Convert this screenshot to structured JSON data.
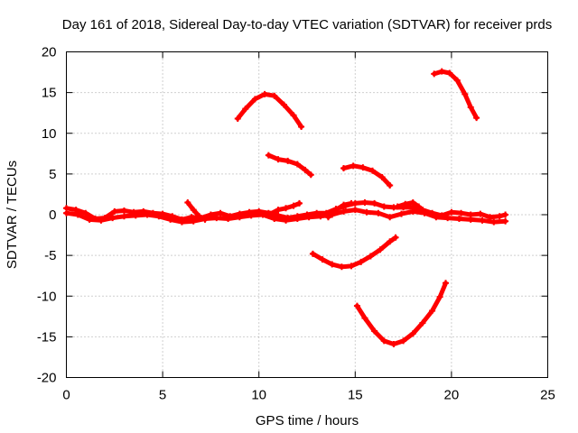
{
  "chart_data": {
    "type": "scatter",
    "title": "Day 161 of 2018, Sidereal Day-to-day VTEC variation (SDTVAR) for receiver prds",
    "xlabel": "GPS time / hours",
    "ylabel": "SDTVAR / TECUs",
    "xlim": [
      0,
      25
    ],
    "ylim": [
      -20,
      20
    ],
    "xticks": [
      0,
      5,
      10,
      15,
      20,
      25
    ],
    "yticks": [
      -20,
      -15,
      -10,
      -5,
      0,
      5,
      10,
      15,
      20
    ],
    "grid": true,
    "series_color": "#ff0000",
    "series": [
      {
        "name": "baseline",
        "points": [
          [
            0.0,
            0.8
          ],
          [
            0.5,
            0.6
          ],
          [
            1.0,
            0.2
          ],
          [
            1.5,
            -0.5
          ],
          [
            2.0,
            -0.4
          ],
          [
            2.5,
            0.4
          ],
          [
            3.0,
            0.5
          ],
          [
            3.5,
            0.3
          ],
          [
            4.0,
            0.4
          ],
          [
            4.5,
            0.2
          ],
          [
            5.0,
            0.1
          ],
          [
            5.5,
            -0.2
          ],
          [
            6.0,
            -0.6
          ],
          [
            6.5,
            -0.3
          ],
          [
            7.0,
            -0.4
          ],
          [
            7.5,
            0.0
          ],
          [
            8.0,
            0.2
          ],
          [
            8.5,
            -0.2
          ],
          [
            9.0,
            0.1
          ],
          [
            9.5,
            0.3
          ],
          [
            10.0,
            0.4
          ],
          [
            10.5,
            0.2
          ],
          [
            11.0,
            -0.1
          ],
          [
            11.5,
            -0.4
          ],
          [
            12.0,
            -0.2
          ],
          [
            12.5,
            0.0
          ],
          [
            13.0,
            0.2
          ],
          [
            13.5,
            0.2
          ],
          [
            14.0,
            0.7
          ],
          [
            14.5,
            1.1
          ],
          [
            15.0,
            1.4
          ],
          [
            15.5,
            1.5
          ],
          [
            16.0,
            1.4
          ],
          [
            16.5,
            1.0
          ],
          [
            17.0,
            0.9
          ],
          [
            17.5,
            0.9
          ],
          [
            18.0,
            0.9
          ],
          [
            18.5,
            0.6
          ],
          [
            19.0,
            0.2
          ],
          [
            19.5,
            -0.1
          ],
          [
            20.0,
            0.3
          ],
          [
            20.5,
            0.2
          ],
          [
            21.0,
            0.0
          ],
          [
            21.5,
            0.1
          ],
          [
            22.0,
            -0.3
          ],
          [
            22.5,
            -0.2
          ],
          [
            22.8,
            0.0
          ]
        ]
      },
      {
        "name": "baseline-lower",
        "points": [
          [
            0.0,
            0.2
          ],
          [
            0.6,
            0.0
          ],
          [
            1.2,
            -0.6
          ],
          [
            1.8,
            -0.7
          ],
          [
            2.4,
            -0.4
          ],
          [
            3.0,
            -0.2
          ],
          [
            3.6,
            -0.1
          ],
          [
            4.2,
            0.0
          ],
          [
            4.8,
            -0.2
          ],
          [
            5.4,
            -0.6
          ],
          [
            6.0,
            -0.9
          ],
          [
            6.6,
            -0.8
          ],
          [
            7.2,
            -0.5
          ],
          [
            7.8,
            -0.4
          ],
          [
            8.4,
            -0.5
          ],
          [
            9.0,
            -0.3
          ],
          [
            9.6,
            -0.1
          ],
          [
            10.2,
            0.0
          ],
          [
            10.8,
            -0.5
          ],
          [
            11.4,
            -0.7
          ],
          [
            12.0,
            -0.5
          ],
          [
            12.6,
            -0.3
          ],
          [
            13.2,
            -0.2
          ],
          [
            13.8,
            0.0
          ],
          [
            14.4,
            0.4
          ],
          [
            15.0,
            0.6
          ],
          [
            15.6,
            0.3
          ],
          [
            16.2,
            0.2
          ],
          [
            16.8,
            -0.3
          ],
          [
            17.4,
            0.1
          ],
          [
            18.0,
            0.4
          ],
          [
            18.6,
            0.2
          ],
          [
            19.2,
            -0.3
          ],
          [
            19.8,
            -0.4
          ],
          [
            20.4,
            -0.5
          ],
          [
            21.0,
            -0.6
          ],
          [
            21.6,
            -0.7
          ],
          [
            22.2,
            -0.9
          ],
          [
            22.8,
            -0.8
          ]
        ]
      },
      {
        "name": "spur-6h",
        "points": [
          [
            6.3,
            1.5
          ],
          [
            6.6,
            0.6
          ],
          [
            6.9,
            -0.2
          ],
          [
            7.2,
            -0.6
          ]
        ]
      },
      {
        "name": "spur-11h",
        "points": [
          [
            10.6,
            0.1
          ],
          [
            11.0,
            0.6
          ],
          [
            11.4,
            0.8
          ],
          [
            11.8,
            1.1
          ],
          [
            12.1,
            1.4
          ]
        ]
      },
      {
        "name": "spur-14h",
        "points": [
          [
            13.6,
            -0.3
          ],
          [
            14.0,
            0.6
          ],
          [
            14.4,
            1.2
          ],
          [
            14.8,
            1.4
          ]
        ]
      },
      {
        "name": "spur-18h",
        "points": [
          [
            17.2,
            1.0
          ],
          [
            17.6,
            1.3
          ],
          [
            18.0,
            1.5
          ],
          [
            18.3,
            1.0
          ]
        ]
      },
      {
        "name": "arc-a",
        "points": [
          [
            8.9,
            11.8
          ],
          [
            9.3,
            13.0
          ],
          [
            9.8,
            14.2
          ],
          [
            10.3,
            14.8
          ],
          [
            10.8,
            14.6
          ],
          [
            11.3,
            13.5
          ],
          [
            11.8,
            12.2
          ],
          [
            12.2,
            10.8
          ]
        ]
      },
      {
        "name": "arc-b",
        "points": [
          [
            10.5,
            7.3
          ],
          [
            11.0,
            6.8
          ],
          [
            11.5,
            6.6
          ],
          [
            12.0,
            6.2
          ],
          [
            12.4,
            5.5
          ],
          [
            12.7,
            4.9
          ]
        ]
      },
      {
        "name": "arc-c",
        "points": [
          [
            14.4,
            5.7
          ],
          [
            14.9,
            6.0
          ],
          [
            15.4,
            5.8
          ],
          [
            15.9,
            5.4
          ],
          [
            16.4,
            4.6
          ],
          [
            16.8,
            3.6
          ]
        ]
      },
      {
        "name": "arc-d",
        "points": [
          [
            19.1,
            17.3
          ],
          [
            19.5,
            17.6
          ],
          [
            19.9,
            17.4
          ],
          [
            20.3,
            16.5
          ],
          [
            20.7,
            14.8
          ],
          [
            21.0,
            13.2
          ],
          [
            21.3,
            11.9
          ]
        ]
      },
      {
        "name": "arc-e",
        "points": [
          [
            12.8,
            -4.8
          ],
          [
            13.3,
            -5.5
          ],
          [
            13.8,
            -6.1
          ],
          [
            14.3,
            -6.4
          ],
          [
            14.8,
            -6.3
          ],
          [
            15.3,
            -5.8
          ],
          [
            15.8,
            -5.1
          ],
          [
            16.3,
            -4.3
          ],
          [
            16.8,
            -3.3
          ],
          [
            17.1,
            -2.8
          ]
        ]
      },
      {
        "name": "arc-f",
        "points": [
          [
            15.1,
            -11.2
          ],
          [
            15.5,
            -12.7
          ],
          [
            16.0,
            -14.3
          ],
          [
            16.5,
            -15.5
          ],
          [
            17.0,
            -15.9
          ],
          [
            17.5,
            -15.5
          ],
          [
            18.0,
            -14.6
          ],
          [
            18.5,
            -13.3
          ],
          [
            19.0,
            -11.8
          ],
          [
            19.4,
            -10.1
          ],
          [
            19.7,
            -8.4
          ]
        ]
      }
    ]
  }
}
